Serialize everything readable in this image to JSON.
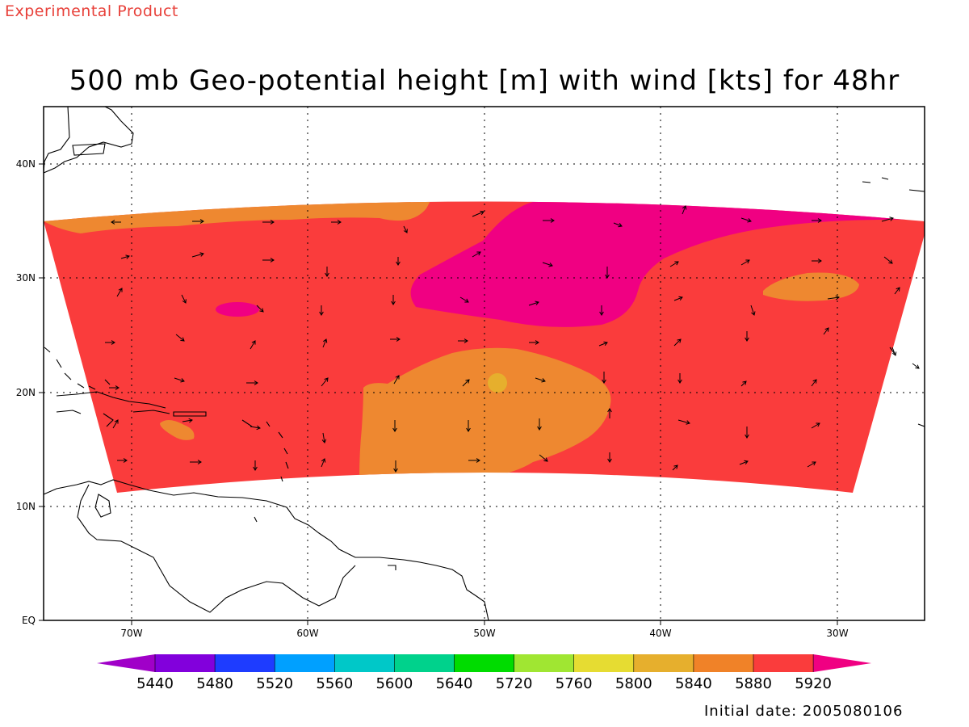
{
  "header": {
    "experimental_label": "Experimental Product"
  },
  "map": {
    "title": "500 mb Geo-potential height [m] with wind [kts] for 48hr",
    "lat_labels": [
      "40N",
      "30N",
      "20N",
      "10N",
      "EQ"
    ],
    "lon_labels": [
      "70W",
      "60W",
      "50W",
      "40W",
      "30W"
    ],
    "field_colors": {
      "5840": "#ee8830",
      "5880": "#fa3c3c",
      "5920": "#f00082",
      "5800": "#e6af2d"
    }
  },
  "colorbar": {
    "levels": [
      "5440",
      "5480",
      "5520",
      "5560",
      "5600",
      "5640",
      "5720",
      "5760",
      "5800",
      "5840",
      "5880",
      "5920"
    ],
    "colors": [
      "#a000c8",
      "#8200dc",
      "#1e3cff",
      "#00a0ff",
      "#00c8c8",
      "#00d28c",
      "#00dc00",
      "#a0e632",
      "#e6dc32",
      "#e6af2d",
      "#f08228",
      "#fa3c3c",
      "#f00082"
    ]
  },
  "footer": {
    "initial_date": "Initial date: 2005080106"
  }
}
